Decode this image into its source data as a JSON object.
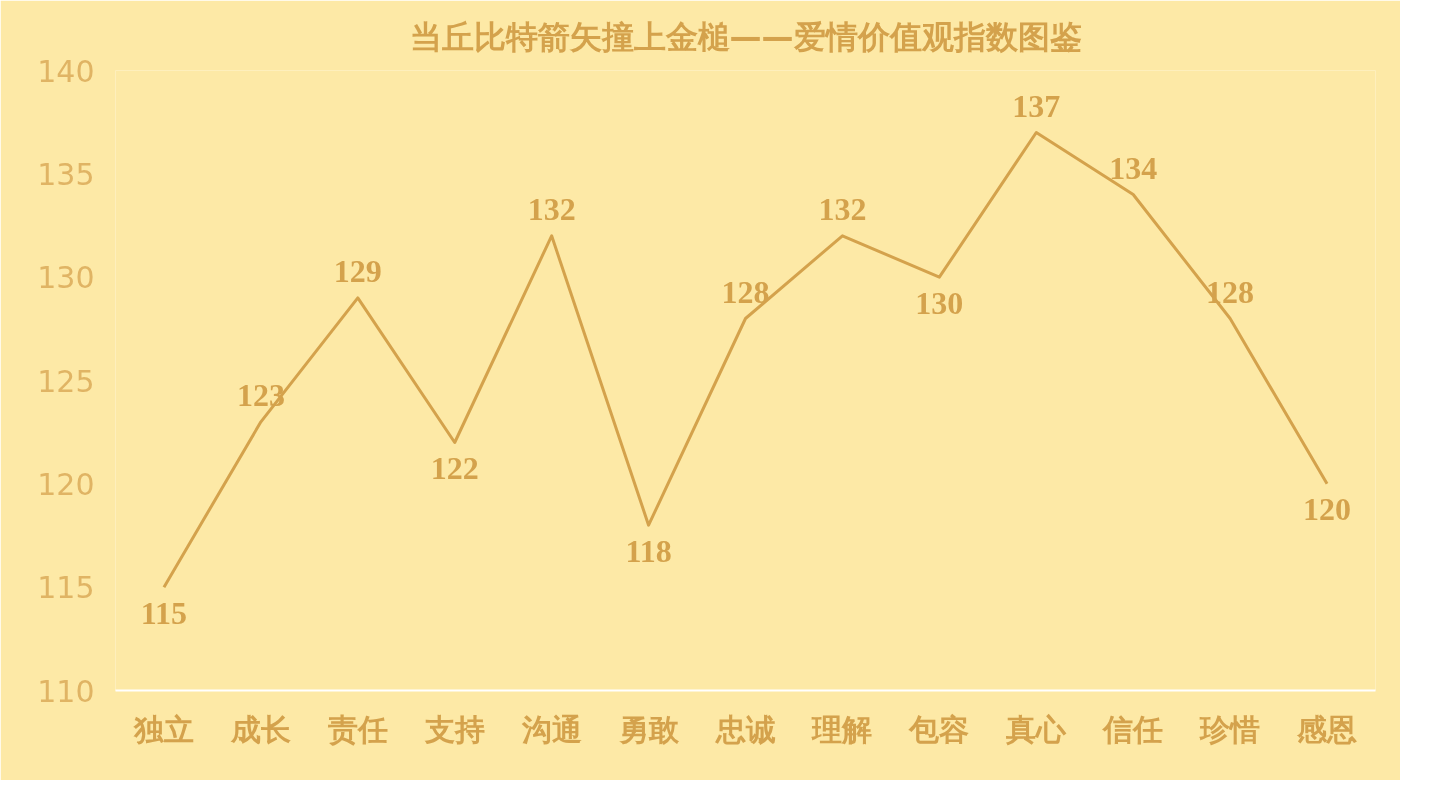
{
  "chart_data": {
    "type": "line",
    "title": "当丘比特箭矢撞上金槌——爱情价值观指数图鉴",
    "categories": [
      "独立",
      "成长",
      "责任",
      "支持",
      "沟通",
      "勇敢",
      "忠诚",
      "理解",
      "包容",
      "真心",
      "信任",
      "珍惜",
      "感恩"
    ],
    "series": [
      {
        "color": "#d4a24c",
        "values": [
          115,
          123,
          129,
          122,
          132,
          118,
          128,
          132,
          130,
          137,
          134,
          128,
          120
        ]
      }
    ],
    "ylim": [
      110,
      140
    ],
    "yticks": [
      110,
      115,
      120,
      125,
      130,
      135,
      140
    ],
    "grid": false,
    "marker": "none",
    "line_style": "solid",
    "data_labels": true
  }
}
